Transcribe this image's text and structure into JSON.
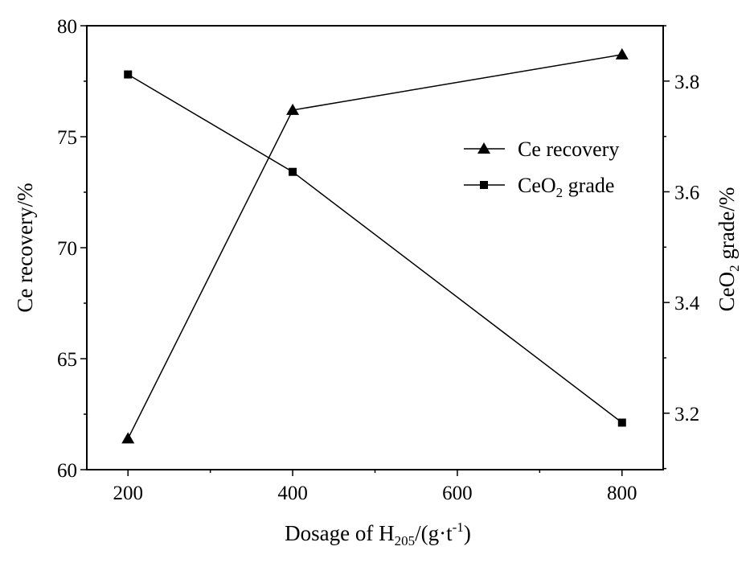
{
  "chart_data": {
    "type": "line",
    "x": [
      200,
      400,
      800
    ],
    "xlabel": {
      "prefix": "Dosage of H",
      "sub": "205",
      "mid": "/(g·t",
      "sup": "-1",
      "suffix": ")"
    },
    "xlim": [
      150,
      850
    ],
    "x_ticks": [
      200,
      400,
      600,
      800
    ],
    "x_tick_labels": [
      "200",
      "400",
      "600",
      "800"
    ],
    "left_axis": {
      "label": "Ce recovery/%",
      "ylim": [
        60,
        80
      ],
      "ticks": [
        60,
        65,
        70,
        75,
        80
      ],
      "tick_labels": [
        "60",
        "65",
        "70",
        "75",
        "80"
      ]
    },
    "right_axis": {
      "label": {
        "prefix": "CeO",
        "sub": "2",
        "suffix": " grade/%"
      },
      "ylim": [
        3.098,
        3.9
      ],
      "ticks": [
        3.2,
        3.4,
        3.6,
        3.8
      ],
      "tick_labels": [
        "3.2",
        "3.4",
        "3.6",
        "3.8"
      ]
    },
    "series": [
      {
        "name": "Ce recovery",
        "axis": "left",
        "marker": "triangle",
        "values": [
          61.4,
          76.2,
          78.7
        ]
      },
      {
        "name": "CeO2 grade",
        "name_parts": {
          "prefix": "CeO",
          "sub": "2",
          "suffix": " grade"
        },
        "axis": "right",
        "marker": "square",
        "values": [
          3.812,
          3.636,
          3.183
        ]
      }
    ],
    "legend": "upper-right",
    "grid": false
  }
}
